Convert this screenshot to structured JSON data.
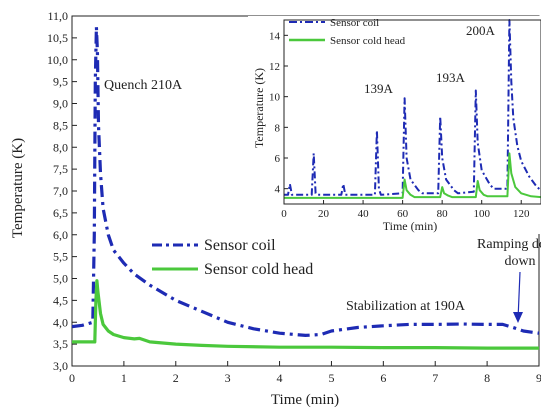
{
  "chart_data": [
    {
      "id": "main",
      "type": "line",
      "xlabel": "Time (min)",
      "ylabel": "Temperature (K)",
      "xlim": [
        0,
        9
      ],
      "ylim": [
        3.0,
        11.0
      ],
      "x_ticks": [
        "0",
        "1",
        "2",
        "3",
        "4",
        "5",
        "6",
        "7",
        "8",
        "9"
      ],
      "y_ticks": [
        "3,0",
        "3,5",
        "4,0",
        "4,5",
        "5,0",
        "5,5",
        "6,0",
        "6,5",
        "7,0",
        "7,5",
        "8,0",
        "8,5",
        "9,0",
        "9,5",
        "10,0",
        "10,5",
        "11,0"
      ],
      "legend": {
        "position": "center-right",
        "entries": [
          "Sensor coil",
          "Sensor cold head"
        ]
      },
      "series": [
        {
          "name": "Sensor coil",
          "color": "#1e2bb4",
          "style": "dash-dot",
          "x": [
            0,
            0.2,
            0.4,
            0.43,
            0.45,
            0.47,
            0.49,
            0.51,
            0.55,
            0.6,
            0.7,
            0.8,
            1.0,
            1.2,
            1.5,
            2.0,
            2.5,
            3.0,
            3.5,
            4.0,
            4.5,
            4.8,
            5.0,
            5.5,
            6.0,
            6.5,
            7.0,
            7.5,
            8.0,
            8.3,
            8.5,
            8.7,
            9.0
          ],
          "y": [
            3.9,
            3.93,
            4.0,
            6.0,
            9.5,
            10.75,
            10.2,
            8.5,
            7.4,
            6.6,
            6.0,
            5.65,
            5.35,
            5.1,
            4.85,
            4.5,
            4.25,
            4.0,
            3.85,
            3.75,
            3.7,
            3.72,
            3.8,
            3.88,
            3.92,
            3.95,
            3.95,
            3.96,
            3.95,
            3.95,
            3.88,
            3.8,
            3.75
          ]
        },
        {
          "name": "Sensor cold head",
          "color": "#4bc83c",
          "style": "solid",
          "x": [
            0,
            0.3,
            0.44,
            0.46,
            0.48,
            0.5,
            0.55,
            0.6,
            0.7,
            0.8,
            1.0,
            1.2,
            1.3,
            1.5,
            2.0,
            2.5,
            3.0,
            4.0,
            5.0,
            6.0,
            7.0,
            8.0,
            9.0
          ],
          "y": [
            3.55,
            3.55,
            3.55,
            4.5,
            4.95,
            4.7,
            4.2,
            3.95,
            3.8,
            3.72,
            3.65,
            3.62,
            3.63,
            3.55,
            3.5,
            3.47,
            3.45,
            3.43,
            3.43,
            3.42,
            3.42,
            3.41,
            3.41
          ]
        }
      ],
      "annotations": [
        "Quench 210A",
        "Stabilization at 190A",
        "Ramping down"
      ]
    },
    {
      "id": "inset",
      "type": "line",
      "xlabel": "Time (min)",
      "ylabel": "Temperature (K)",
      "xlim": [
        0,
        130
      ],
      "ylim": [
        3,
        15
      ],
      "x_ticks": [
        "0",
        "20",
        "40",
        "60",
        "80",
        "100",
        "120"
      ],
      "y_ticks": [
        "4",
        "6",
        "8",
        "10",
        "12",
        "14"
      ],
      "legend": {
        "position": "top-left",
        "entries": [
          "Sensor coil",
          "Sensor cold head"
        ]
      },
      "series": [
        {
          "name": "Sensor coil",
          "color": "#1e2bb4",
          "style": "dash-dot",
          "x": [
            0,
            2,
            3,
            4,
            14,
            15,
            16,
            17,
            29,
            30,
            31,
            46,
            47,
            48,
            49,
            60,
            61,
            62,
            64,
            68,
            70,
            78,
            79,
            80,
            82,
            86,
            88,
            96,
            97,
            98,
            100,
            104,
            106,
            113,
            114,
            115,
            116,
            118,
            120,
            124,
            128,
            130
          ],
          "y": [
            3.6,
            3.6,
            4.3,
            3.6,
            3.6,
            6.3,
            3.7,
            3.6,
            3.6,
            4.3,
            3.6,
            3.6,
            7.8,
            4.0,
            3.6,
            3.7,
            9.9,
            6.0,
            4.6,
            3.9,
            3.7,
            3.7,
            8.7,
            6.0,
            4.6,
            3.9,
            3.7,
            3.8,
            10.4,
            7.0,
            5.2,
            4.3,
            4.0,
            4.0,
            15.0,
            11.0,
            8.6,
            6.8,
            5.8,
            4.8,
            4.1,
            3.9
          ]
        },
        {
          "name": "Sensor cold head",
          "color": "#4bc83c",
          "style": "solid",
          "x": [
            0,
            60,
            61,
            62,
            64,
            66,
            79,
            80,
            81,
            83,
            85,
            97,
            98,
            99,
            101,
            103,
            113,
            114,
            115,
            117,
            120,
            125,
            130
          ],
          "y": [
            3.4,
            3.4,
            4.6,
            3.9,
            3.6,
            3.45,
            3.45,
            4.1,
            3.7,
            3.55,
            3.45,
            3.45,
            4.5,
            3.9,
            3.6,
            3.5,
            3.5,
            6.3,
            5.0,
            4.1,
            3.7,
            3.5,
            3.45
          ]
        }
      ],
      "annotations": [
        "139A",
        "193A",
        "200A"
      ]
    }
  ]
}
